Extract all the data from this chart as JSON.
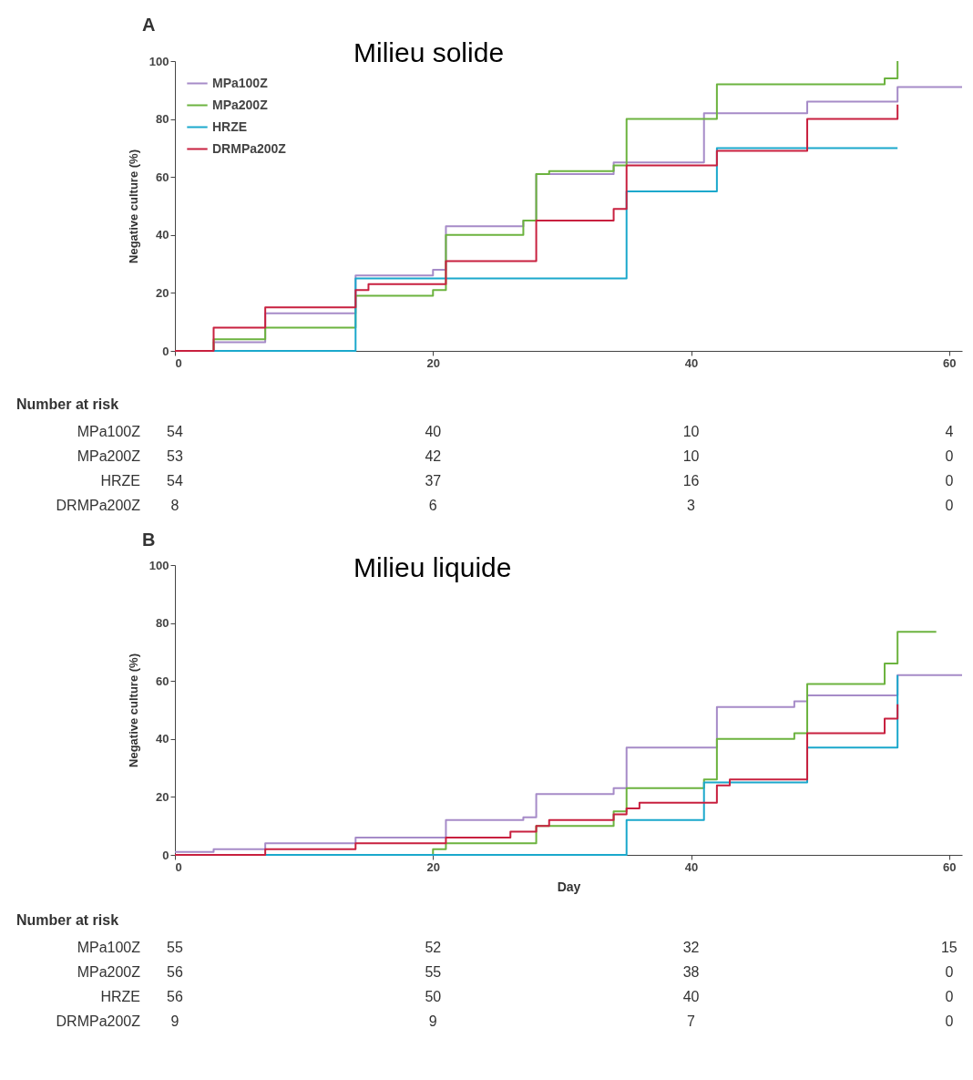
{
  "chart_data": [
    {
      "type": "step",
      "title": "A",
      "subtitle": "Milieu solide",
      "ylabel": "Negative culture (%)",
      "xlim": [
        0,
        61
      ],
      "xticks": [
        0,
        20,
        40,
        60
      ],
      "ylim": [
        0,
        100
      ],
      "yticks": [
        0,
        20,
        40,
        60,
        80,
        100
      ],
      "legend": "top left",
      "series": [
        {
          "name": "MPa100Z",
          "color": "#a68bc8",
          "x": [
            0,
            3,
            7,
            14,
            20,
            21,
            27,
            28,
            34,
            41,
            49,
            56,
            61
          ],
          "values": [
            0,
            3,
            13,
            26,
            28,
            43,
            45,
            61,
            65,
            82,
            86,
            91,
            91
          ]
        },
        {
          "name": "MPa200Z",
          "color": "#6cb33f",
          "x": [
            0,
            3,
            7,
            14,
            20,
            21,
            27,
            28,
            29,
            34,
            35,
            42,
            55,
            56
          ],
          "values": [
            0,
            4,
            8,
            19,
            21,
            40,
            45,
            61,
            62,
            64,
            80,
            92,
            94,
            100
          ]
        },
        {
          "name": "HRZE",
          "color": "#1ba8cc",
          "x": [
            0,
            14,
            35,
            42,
            56
          ],
          "values": [
            0,
            25,
            55,
            70,
            70
          ]
        },
        {
          "name": "DRMPa200Z",
          "color": "#c8203f",
          "x": [
            0,
            3,
            7,
            14,
            15,
            21,
            28,
            34,
            35,
            42,
            49,
            56
          ],
          "values": [
            0,
            8,
            15,
            21,
            23,
            31,
            45,
            49,
            64,
            69,
            80,
            85
          ]
        }
      ],
      "annotations": [
        "Number at risk",
        "MPa100Z",
        "54",
        "40",
        "10",
        "4",
        "MPa200Z",
        "53",
        "42",
        "10",
        "0",
        "HRZE",
        "54",
        "37",
        "16",
        "0",
        "DRMPa200Z",
        "8",
        "6",
        "3",
        "0"
      ]
    },
    {
      "type": "step",
      "title": "B",
      "subtitle": "Milieu liquide",
      "xlabel": "Day",
      "ylabel": "Negative culture (%)",
      "xlim": [
        0,
        61
      ],
      "xticks": [
        0,
        20,
        40,
        60
      ],
      "ylim": [
        0,
        100
      ],
      "yticks": [
        0,
        20,
        40,
        60,
        80,
        100
      ],
      "series": [
        {
          "color": "#a68bc8",
          "x": [
            0,
            3,
            7,
            14,
            21,
            27,
            28,
            34,
            35,
            42,
            48,
            49,
            56,
            61
          ],
          "values": [
            1,
            2,
            4,
            6,
            12,
            13,
            21,
            23,
            37,
            51,
            53,
            55,
            62,
            62
          ]
        },
        {
          "color": "#6cb33f",
          "x": [
            0,
            20,
            21,
            28,
            34,
            35,
            41,
            42,
            48,
            49,
            55,
            56,
            59
          ],
          "values": [
            0,
            2,
            4,
            10,
            15,
            23,
            26,
            40,
            42,
            59,
            66,
            77,
            77
          ]
        },
        {
          "color": "#1ba8cc",
          "x": [
            0,
            35,
            41,
            49,
            56
          ],
          "values": [
            0,
            12,
            25,
            37,
            62
          ]
        },
        {
          "color": "#c8203f",
          "x": [
            0,
            7,
            14,
            21,
            26,
            28,
            29,
            34,
            35,
            36,
            42,
            43,
            49,
            55,
            56
          ],
          "values": [
            0,
            2,
            4,
            6,
            8,
            10,
            12,
            14,
            16,
            18,
            24,
            26,
            42,
            47,
            52
          ]
        }
      ],
      "annotations": [
        "Number at risk",
        "MPa100Z",
        "55",
        "52",
        "32",
        "15",
        "MPa200Z",
        "56",
        "55",
        "38",
        "0",
        "HRZE",
        "56",
        "50",
        "40",
        "0",
        "DRMPa200Z",
        "9",
        "9",
        "7",
        "0"
      ]
    }
  ]
}
